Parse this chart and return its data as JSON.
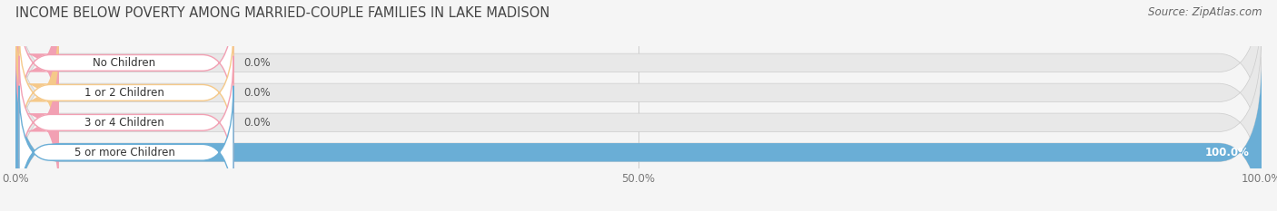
{
  "title": "INCOME BELOW POVERTY AMONG MARRIED-COUPLE FAMILIES IN LAKE MADISON",
  "source": "Source: ZipAtlas.com",
  "categories": [
    "No Children",
    "1 or 2 Children",
    "3 or 4 Children",
    "5 or more Children"
  ],
  "values": [
    0.0,
    0.0,
    0.0,
    100.0
  ],
  "bar_colors": [
    "#f2a0b3",
    "#f5c98a",
    "#f2a0b3",
    "#6aaed6"
  ],
  "value_labels": [
    "0.0%",
    "0.0%",
    "0.0%",
    "100.0%"
  ],
  "xlim": [
    0,
    100
  ],
  "xticks": [
    0.0,
    50.0,
    100.0
  ],
  "xticklabels": [
    "0.0%",
    "50.0%",
    "100.0%"
  ],
  "title_fontsize": 10.5,
  "source_fontsize": 8.5,
  "background_color": "#f5f5f5",
  "bar_bg_color": "#e8e8e8",
  "bar_gap_color": "#f5f5f5",
  "label_bg_color": "#ffffff"
}
